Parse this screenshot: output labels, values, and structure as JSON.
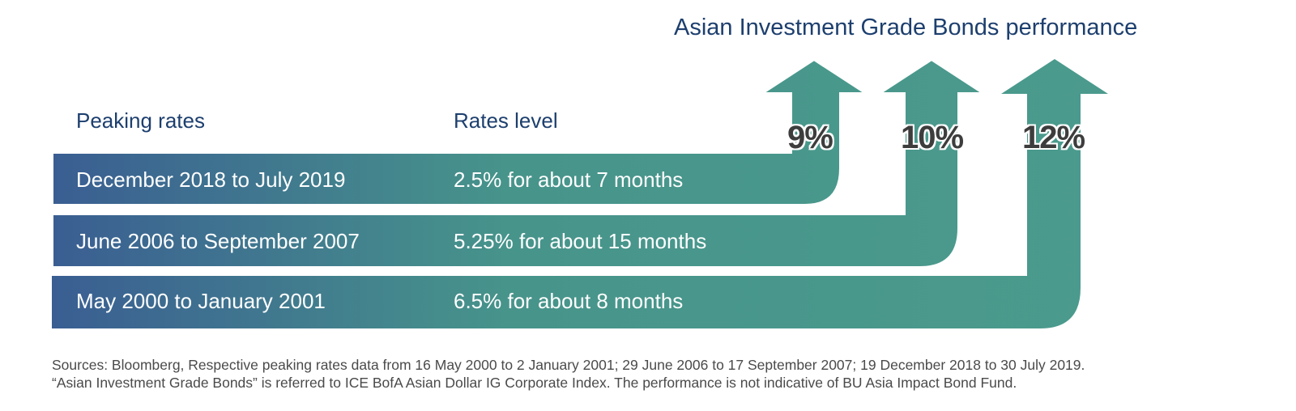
{
  "title": "Asian Investment Grade Bonds performance",
  "headers": {
    "period": "Peaking rates",
    "level": "Rates level"
  },
  "rows": [
    {
      "period": "December 2018 to July 2019",
      "level": "2.5% for about 7 months",
      "performance": "9%"
    },
    {
      "period": "June 2006 to September 2007",
      "level": "5.25% for about 15 months",
      "performance": "10%"
    },
    {
      "period": "May 2000 to January 2001",
      "level": "6.5% for about 8 months",
      "performance": "12%"
    }
  ],
  "sources": [
    "Sources: Bloomberg, Respective peaking rates data from 16 May 2000 to 2 January 2001; 29 June 2006 to 17 September 2007; 19 December 2018 to 30 July 2019.",
    "“Asian Investment Grade Bonds” is referred to ICE BofA Asian Dollar IG Corporate Index. The performance is not indicative of BU Asia Impact Bond Fund."
  ],
  "colors": {
    "band_start": "#3a5e92",
    "band_end": "#4a9a8c",
    "heading": "#1d3f6e"
  }
}
